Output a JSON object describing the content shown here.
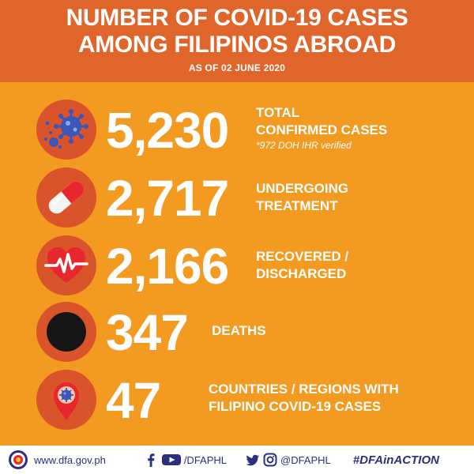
{
  "header": {
    "title_line1": "NUMBER OF COVID-19 CASES",
    "title_line2": "AMONG FILIPINOS ABROAD",
    "subtitle": "AS OF 02 JUNE 2020"
  },
  "stats": [
    {
      "value": "5,230",
      "label_line1": "TOTAL",
      "label_line2": "CONFIRMED CASES",
      "note": "*972 DOH IHR verified",
      "icon": "virus-icon"
    },
    {
      "value": "2,717",
      "label_line1": "UNDERGOING",
      "label_line2": "TREATMENT",
      "icon": "pill-icon"
    },
    {
      "value": "2,166",
      "label_line1": "RECOVERED /",
      "label_line2": "DISCHARGED",
      "icon": "heartbeat-icon"
    },
    {
      "value": "347",
      "label_line1": "DEATHS",
      "icon": "black-circle-icon"
    },
    {
      "value": "47",
      "label_line1": "COUNTRIES / REGIONS WITH",
      "label_line2": "FILIPINO COVID-19 CASES",
      "icon": "location-pin-virus-icon"
    }
  ],
  "footer": {
    "website": "www.dfa.gov.ph",
    "facebook_youtube_handle": "/DFAPHL",
    "twitter_instagram_handle": "@DFAPHL",
    "hashtag": "#DFAinACTION"
  },
  "colors": {
    "background": "#F39A21",
    "header": "#E0652A",
    "icon_circle": "#D9542B",
    "footer_text": "#2B2F7E",
    "virus_blue": "#3B57B8"
  }
}
